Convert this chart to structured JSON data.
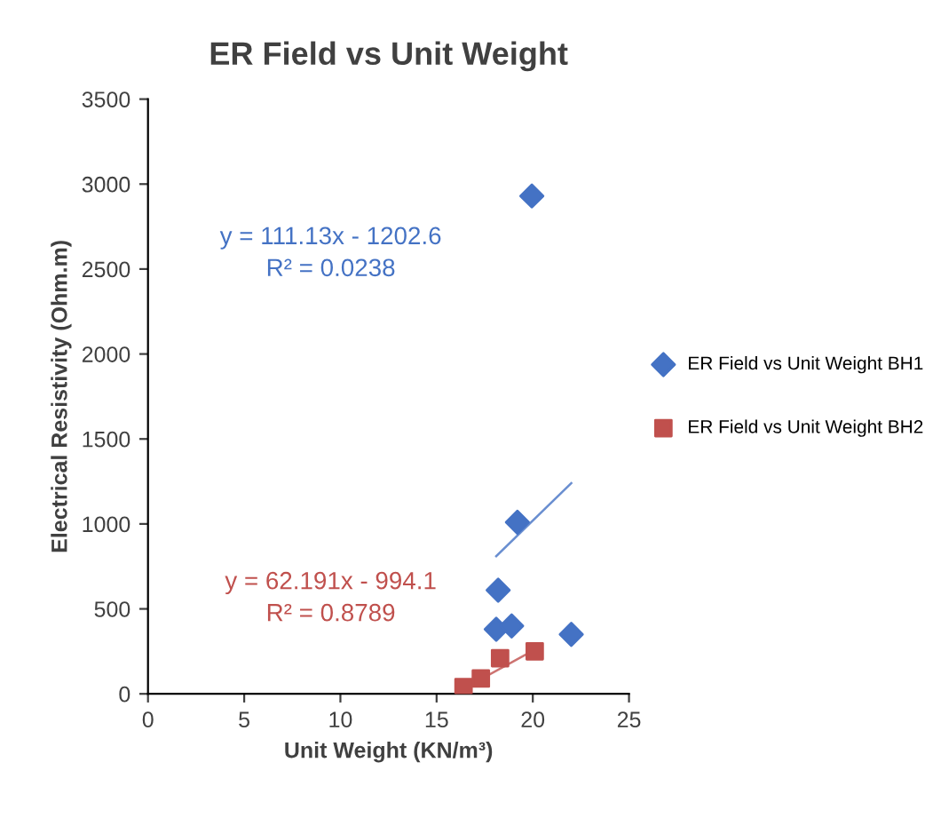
{
  "chart_data": {
    "type": "scatter",
    "title": "ER Field vs Unit Weight",
    "xlabel": "Unit Weight (KN/m³)",
    "ylabel": "Electrical Resistivity (Ohm.m)",
    "series": [
      {
        "name": "ER Field vs Unit Weight BH1",
        "color": "#4472c4",
        "marker": "diamond",
        "x": [
          19.95,
          19.2,
          18.2,
          18.1,
          18.9,
          22.0
        ],
        "values": [
          2930,
          1010,
          610,
          380,
          400,
          350
        ]
      },
      {
        "name": "ER Field vs Unit Weight BH2",
        "color": "#c0504d",
        "marker": "square",
        "x": [
          16.4,
          17.3,
          18.3,
          20.1
        ],
        "values": [
          40,
          90,
          210,
          250
        ]
      },
      {
        "type": "line",
        "color": "#4472c4",
        "marker": "none",
        "x": [
          18.1,
          22.0
        ],
        "values": [
          810,
          1240
        ]
      },
      {
        "type": "line",
        "color": "#c0504d",
        "marker": "none",
        "x": [
          16.4,
          20.1
        ],
        "values": [
          30,
          260
        ]
      }
    ],
    "annotations": [
      "y = 111.13x - 1202.6\nR² = 0.0238",
      "y = 62.191x - 994.1\nR² = 0.8789"
    ],
    "xlim": [
      0,
      25
    ],
    "xticks": [
      0,
      5,
      10,
      15,
      20,
      25
    ],
    "ylim": [
      0,
      3500
    ],
    "yticks": [
      0,
      500,
      1000,
      1500,
      2000,
      2500,
      3000,
      3500
    ],
    "grid": false,
    "legend": "right"
  }
}
